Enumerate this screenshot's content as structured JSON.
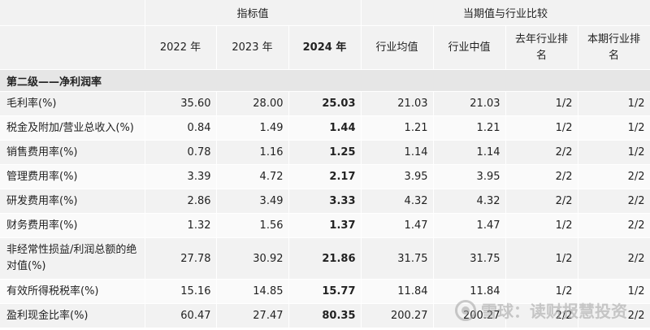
{
  "header": {
    "group_indicators": "指标值",
    "group_compare": "当期值与行业比较",
    "columns": [
      "2022 年",
      "2023 年",
      "2024 年",
      "行业均值",
      "行业中值",
      "去年行业排名",
      "本期行业排名"
    ]
  },
  "section_title": "第二级——净利润率",
  "rows": [
    {
      "label": "毛利率(%)",
      "y2022": "35.60",
      "y2023": "28.00",
      "y2024": "25.03",
      "ind_avg": "21.03",
      "ind_med": "21.03",
      "last_rank": "1/2",
      "this_rank": "1/2"
    },
    {
      "label": "税金及附加/营业总收入(%)",
      "y2022": "0.84",
      "y2023": "1.49",
      "y2024": "1.44",
      "ind_avg": "1.21",
      "ind_med": "1.21",
      "last_rank": "1/2",
      "this_rank": "1/2"
    },
    {
      "label": "销售费用率(%)",
      "y2022": "0.78",
      "y2023": "1.16",
      "y2024": "1.25",
      "ind_avg": "1.14",
      "ind_med": "1.14",
      "last_rank": "2/2",
      "this_rank": "1/2"
    },
    {
      "label": "管理费用率(%)",
      "y2022": "3.39",
      "y2023": "4.72",
      "y2024": "2.17",
      "ind_avg": "3.95",
      "ind_med": "3.95",
      "last_rank": "2/2",
      "this_rank": "2/2"
    },
    {
      "label": "研发费用率(%)",
      "y2022": "2.86",
      "y2023": "3.49",
      "y2024": "3.33",
      "ind_avg": "4.32",
      "ind_med": "4.32",
      "last_rank": "2/2",
      "this_rank": "2/2"
    },
    {
      "label": "财务费用率(%)",
      "y2022": "1.32",
      "y2023": "1.56",
      "y2024": "1.37",
      "ind_avg": "1.47",
      "ind_med": "1.47",
      "last_rank": "1/2",
      "this_rank": "2/2"
    },
    {
      "label": "非经常性损益/利润总额的绝对值(%)",
      "y2022": "27.78",
      "y2023": "30.92",
      "y2024": "21.86",
      "ind_avg": "31.75",
      "ind_med": "31.75",
      "last_rank": "1/2",
      "this_rank": "2/2"
    },
    {
      "label": "有效所得税税率(%)",
      "y2022": "15.16",
      "y2023": "14.85",
      "y2024": "15.77",
      "ind_avg": "11.84",
      "ind_med": "11.84",
      "last_rank": "1/2",
      "this_rank": "1/2"
    },
    {
      "label": "盈利现金比率(%)",
      "y2022": "60.47",
      "y2023": "27.47",
      "y2024": "80.35",
      "ind_avg": "200.27",
      "ind_med": "200.27",
      "last_rank": "2/2",
      "this_rank": "2/2"
    }
  ],
  "watermark": "雪球：读财报慧投资"
}
